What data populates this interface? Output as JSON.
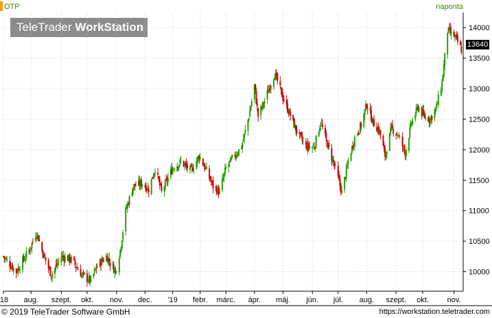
{
  "header": {
    "ticker": "OTP",
    "period": "naponta",
    "logo_light": "TeleTrader ",
    "logo_bold": "WorkStation"
  },
  "last_price": "13640",
  "footer": {
    "copyright": "© 2019 TeleTrader Software GmbH",
    "url": "https://workstation.teletrader.com"
  },
  "colors": {
    "up": "#22a000",
    "down": "#cc0000",
    "grid": "#c8c8c8",
    "axis": "#000000",
    "accent": "#ff9a00",
    "label_green": "#2e8b00"
  },
  "chart_data": {
    "type": "candlestick",
    "title": "",
    "xlabel": "",
    "ylabel": "",
    "ylim": [
      9680,
      14250
    ],
    "y_ticks": [
      10000,
      10500,
      11000,
      11500,
      12000,
      12500,
      13000,
      13500,
      14000
    ],
    "y_tick_labels": [
      "10000",
      "10500",
      "11000",
      "11500",
      "12000",
      "12500",
      "13000",
      "13500",
      "14000"
    ],
    "x_tick_labels": [
      "'18",
      "aug.",
      "szept.",
      "okt.",
      "nov.",
      "dec.",
      "'19",
      "febr.",
      "márc.",
      "ápr.",
      "máj.",
      "jún.",
      "júl.",
      "aug.",
      "szept.",
      "okt.",
      "nov."
    ],
    "x_tick_dates": [
      "2018-07-02",
      "2018-08-01",
      "2018-09-03",
      "2018-10-01",
      "2018-11-02",
      "2018-12-03",
      "2019-01-02",
      "2019-02-01",
      "2019-03-01",
      "2019-04-01",
      "2019-05-02",
      "2019-06-03",
      "2019-07-01",
      "2019-08-01",
      "2019-09-02",
      "2019-10-01",
      "2019-11-04"
    ],
    "x_range": [
      "2018-07-02",
      "2019-11-14"
    ],
    "grid": true,
    "closes": [
      {
        "date": "2018-07-02",
        "close": 10250
      },
      {
        "date": "2018-07-16",
        "close": 10000
      },
      {
        "date": "2018-07-30",
        "close": 10350
      },
      {
        "date": "2018-08-07",
        "close": 10650
      },
      {
        "date": "2018-08-14",
        "close": 10300
      },
      {
        "date": "2018-08-23",
        "close": 9950
      },
      {
        "date": "2018-09-03",
        "close": 10250
      },
      {
        "date": "2018-09-14",
        "close": 10200
      },
      {
        "date": "2018-09-25",
        "close": 9950
      },
      {
        "date": "2018-10-05",
        "close": 9850
      },
      {
        "date": "2018-10-12",
        "close": 10100
      },
      {
        "date": "2018-10-22",
        "close": 10250
      },
      {
        "date": "2018-11-01",
        "close": 10000
      },
      {
        "date": "2018-11-06",
        "close": 10350
      },
      {
        "date": "2018-11-12",
        "close": 11000
      },
      {
        "date": "2018-11-20",
        "close": 11400
      },
      {
        "date": "2018-11-30",
        "close": 11450
      },
      {
        "date": "2018-12-07",
        "close": 11350
      },
      {
        "date": "2018-12-14",
        "close": 11700
      },
      {
        "date": "2018-12-21",
        "close": 11300
      },
      {
        "date": "2019-01-02",
        "close": 11700
      },
      {
        "date": "2019-01-11",
        "close": 11800
      },
      {
        "date": "2019-01-22",
        "close": 11650
      },
      {
        "date": "2019-01-31",
        "close": 11900
      },
      {
        "date": "2019-02-08",
        "close": 11650
      },
      {
        "date": "2019-02-15",
        "close": 11400
      },
      {
        "date": "2019-02-22",
        "close": 11300
      },
      {
        "date": "2019-03-01",
        "close": 11700
      },
      {
        "date": "2019-03-08",
        "close": 11850
      },
      {
        "date": "2019-03-18",
        "close": 12050
      },
      {
        "date": "2019-03-26",
        "close": 12550
      },
      {
        "date": "2019-04-01",
        "close": 13050
      },
      {
        "date": "2019-04-05",
        "close": 12550
      },
      {
        "date": "2019-04-12",
        "close": 12800
      },
      {
        "date": "2019-04-23",
        "close": 13250
      },
      {
        "date": "2019-05-02",
        "close": 12850
      },
      {
        "date": "2019-05-09",
        "close": 12600
      },
      {
        "date": "2019-05-17",
        "close": 12300
      },
      {
        "date": "2019-05-27",
        "close": 12050
      },
      {
        "date": "2019-06-05",
        "close": 12050
      },
      {
        "date": "2019-06-12",
        "close": 12450
      },
      {
        "date": "2019-06-20",
        "close": 12050
      },
      {
        "date": "2019-06-28",
        "close": 11700
      },
      {
        "date": "2019-07-05",
        "close": 11300
      },
      {
        "date": "2019-07-12",
        "close": 11800
      },
      {
        "date": "2019-07-19",
        "close": 12200
      },
      {
        "date": "2019-07-26",
        "close": 12400
      },
      {
        "date": "2019-08-01",
        "close": 12750
      },
      {
        "date": "2019-08-08",
        "close": 12450
      },
      {
        "date": "2019-08-15",
        "close": 12300
      },
      {
        "date": "2019-08-21",
        "close": 11900
      },
      {
        "date": "2019-08-28",
        "close": 12350
      },
      {
        "date": "2019-09-04",
        "close": 12250
      },
      {
        "date": "2019-09-12",
        "close": 11950
      },
      {
        "date": "2019-09-19",
        "close": 12450
      },
      {
        "date": "2019-09-26",
        "close": 12700
      },
      {
        "date": "2019-10-02",
        "close": 12550
      },
      {
        "date": "2019-10-09",
        "close": 12500
      },
      {
        "date": "2019-10-16",
        "close": 12700
      },
      {
        "date": "2019-10-22",
        "close": 13100
      },
      {
        "date": "2019-10-28",
        "close": 13950
      },
      {
        "date": "2019-11-05",
        "close": 13850
      },
      {
        "date": "2019-11-12",
        "close": 13640
      }
    ]
  }
}
